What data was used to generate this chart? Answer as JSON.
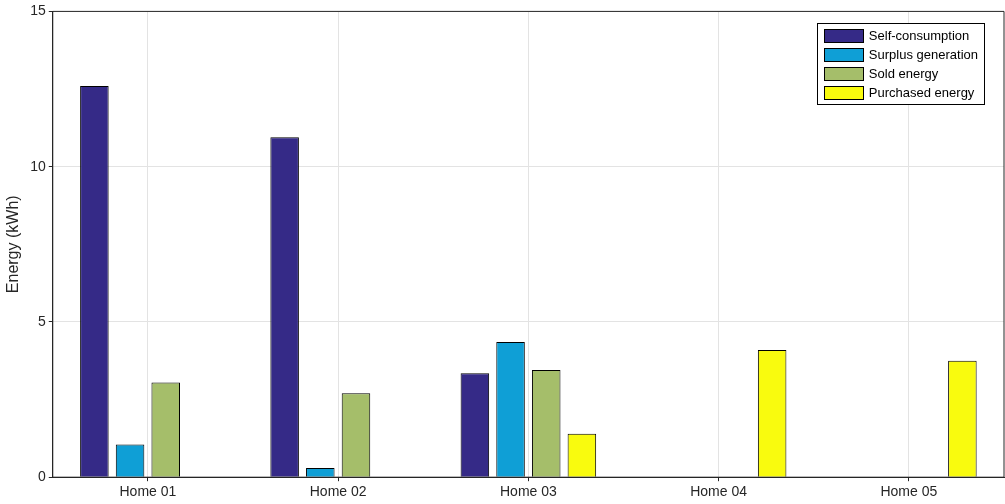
{
  "chart_data": {
    "type": "bar",
    "ylabel": "Energy (kWh)",
    "categories": [
      "Home 01",
      "Home 02",
      "Home 03",
      "Home 04",
      "Home 05"
    ],
    "series": [
      {
        "name": "Self-consumption",
        "color": "#352a87",
        "values": [
          12.6,
          10.95,
          3.35,
          0,
          0
        ]
      },
      {
        "name": "Surplus generation",
        "color": "#0f9fd6",
        "values": [
          1.05,
          0.3,
          4.35,
          0,
          0
        ]
      },
      {
        "name": "Sold energy",
        "color": "#a5be6a",
        "values": [
          3.05,
          2.7,
          3.45,
          0,
          0
        ]
      },
      {
        "name": "Purchased energy",
        "color": "#f9fb0e",
        "values": [
          0,
          0,
          1.4,
          4.1,
          3.75
        ]
      }
    ],
    "ylim": [
      0,
      15
    ],
    "yticks": [
      0,
      5,
      10,
      15
    ],
    "grid": true,
    "legend": "top right"
  }
}
